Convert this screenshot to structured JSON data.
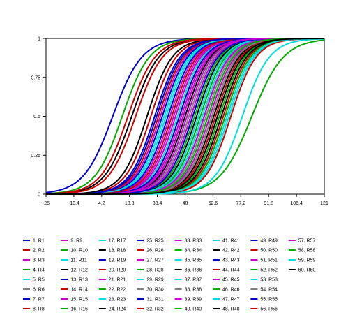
{
  "chart_data": {
    "type": "line",
    "title": "",
    "xlabel": "",
    "ylabel": "",
    "xlim": [
      -25,
      121
    ],
    "ylim": [
      0,
      1
    ],
    "grid": false,
    "legend_position": "bottom",
    "legend_columns": 8,
    "x_tick_labels": [
      "-25",
      "-10.4",
      "4.2",
      "18.8",
      "33.4",
      "48",
      "62.6",
      "77.2",
      "91.8",
      "106.4",
      "121"
    ],
    "y_tick_labels": [
      "0",
      "0.25",
      "0.5",
      "0.75",
      "1"
    ],
    "y_tick_values": [
      0,
      0.25,
      0.5,
      0.75,
      1
    ],
    "curve_shape": "logistic",
    "series": [
      {
        "name": "1. R1",
        "color": "#0000CC",
        "midpoint": 10.0,
        "slope": 0.13
      },
      {
        "name": "2. R2",
        "color": "#CC0000",
        "midpoint": 30.0,
        "slope": 0.15
      },
      {
        "name": "3. R3",
        "color": "#CC00CC",
        "midpoint": 35.0,
        "slope": 0.15
      },
      {
        "name": "4. R4",
        "color": "#00AA00",
        "midpoint": 45.0,
        "slope": 0.15
      },
      {
        "name": "5. R5",
        "color": "#00DDDD",
        "midpoint": 50.0,
        "slope": 0.15
      },
      {
        "name": "6. R6",
        "color": "#808080",
        "midpoint": 55.0,
        "slope": 0.15
      },
      {
        "name": "7. R7",
        "color": "#0000CC",
        "midpoint": 58.0,
        "slope": 0.15
      },
      {
        "name": "8. R8",
        "color": "#CC0000",
        "midpoint": 62.0,
        "slope": 0.15
      },
      {
        "name": "9. R9",
        "color": "#CC00CC",
        "midpoint": 40.0,
        "slope": 0.15
      },
      {
        "name": "10. R10",
        "color": "#00AA00",
        "midpoint": 15.0,
        "slope": 0.14
      },
      {
        "name": "11. R11",
        "color": "#00DDDD",
        "midpoint": 38.0,
        "slope": 0.15
      },
      {
        "name": "12. R12",
        "color": "#000000",
        "midpoint": 20.0,
        "slope": 0.14
      },
      {
        "name": "13. R13",
        "color": "#0000CC",
        "midpoint": 36.0,
        "slope": 0.15
      },
      {
        "name": "14. R14",
        "color": "#CC0000",
        "midpoint": 18.0,
        "slope": 0.14
      },
      {
        "name": "15. R15",
        "color": "#CC00CC",
        "midpoint": 42.0,
        "slope": 0.15
      },
      {
        "name": "16. R16",
        "color": "#00AA00",
        "midpoint": 65.0,
        "slope": 0.15
      },
      {
        "name": "17. R17",
        "color": "#00DDDD",
        "midpoint": 44.0,
        "slope": 0.15
      },
      {
        "name": "18. R18",
        "color": "#000000",
        "midpoint": 48.0,
        "slope": 0.15
      },
      {
        "name": "19. R19",
        "color": "#0000CC",
        "midpoint": 32.0,
        "slope": 0.15
      },
      {
        "name": "20. R20",
        "color": "#CC0000",
        "midpoint": 34.0,
        "slope": 0.15
      },
      {
        "name": "21. R21",
        "color": "#CC00CC",
        "midpoint": 46.0,
        "slope": 0.15
      },
      {
        "name": "22. R22",
        "color": "#00AA00",
        "midpoint": 52.0,
        "slope": 0.15
      },
      {
        "name": "23. R23",
        "color": "#00DDDD",
        "midpoint": 60.0,
        "slope": 0.15
      },
      {
        "name": "24. R24",
        "color": "#000000",
        "midpoint": 28.0,
        "slope": 0.15
      },
      {
        "name": "25. R25",
        "color": "#0000CC",
        "midpoint": 39.0,
        "slope": 0.15
      },
      {
        "name": "26. R26",
        "color": "#CC0000",
        "midpoint": 22.0,
        "slope": 0.14
      },
      {
        "name": "27. R27",
        "color": "#CC00CC",
        "midpoint": 43.0,
        "slope": 0.15
      },
      {
        "name": "28. R28",
        "color": "#00AA00",
        "midpoint": 56.0,
        "slope": 0.15
      },
      {
        "name": "29. R29",
        "color": "#00DDDD",
        "midpoint": 37.0,
        "slope": 0.15
      },
      {
        "name": "30. R30",
        "color": "#808080",
        "midpoint": 50.0,
        "slope": 0.15
      },
      {
        "name": "31. R31",
        "color": "#0000CC",
        "midpoint": 47.0,
        "slope": 0.15
      },
      {
        "name": "32. R32",
        "color": "#CC0000",
        "midpoint": 41.0,
        "slope": 0.15
      },
      {
        "name": "33. R33",
        "color": "#CC00CC",
        "midpoint": 49.0,
        "slope": 0.15
      },
      {
        "name": "34. R34",
        "color": "#00AA00",
        "midpoint": 53.0,
        "slope": 0.15
      },
      {
        "name": "35. R35",
        "color": "#00DDDD",
        "midpoint": 57.0,
        "slope": 0.15
      },
      {
        "name": "36. R36",
        "color": "#000000",
        "midpoint": 54.0,
        "slope": 0.15
      },
      {
        "name": "37. R37",
        "color": "#00DDDD",
        "midpoint": 71.0,
        "slope": 0.15
      },
      {
        "name": "38. R38",
        "color": "#808080",
        "midpoint": 59.0,
        "slope": 0.15
      },
      {
        "name": "39. R39",
        "color": "#CC00CC",
        "midpoint": 51.0,
        "slope": 0.15
      },
      {
        "name": "40. R40",
        "color": "#00AA00",
        "midpoint": 83.0,
        "slope": 0.12
      },
      {
        "name": "41. R41",
        "color": "#00DDDD",
        "midpoint": 55.0,
        "slope": 0.15
      },
      {
        "name": "42. R42",
        "color": "#000000",
        "midpoint": 63.0,
        "slope": 0.15
      },
      {
        "name": "43. R43",
        "color": "#0000CC",
        "midpoint": 45.0,
        "slope": 0.15
      },
      {
        "name": "44. R44",
        "color": "#CC0000",
        "midpoint": 68.0,
        "slope": 0.15
      },
      {
        "name": "45. R45",
        "color": "#CC00CC",
        "midpoint": 61.0,
        "slope": 0.15
      },
      {
        "name": "46. R46",
        "color": "#00AA00",
        "midpoint": 66.0,
        "slope": 0.15
      },
      {
        "name": "47. R47",
        "color": "#00DDDD",
        "midpoint": 64.0,
        "slope": 0.15
      },
      {
        "name": "48. R48",
        "color": "#000000",
        "midpoint": 67.0,
        "slope": 0.15
      },
      {
        "name": "49. R49",
        "color": "#0000CC",
        "midpoint": 33.0,
        "slope": 0.15
      },
      {
        "name": "50. R50",
        "color": "#CC0000",
        "midpoint": 72.0,
        "slope": 0.15
      },
      {
        "name": "51. R51",
        "color": "#CC00CC",
        "midpoint": 58.0,
        "slope": 0.15
      },
      {
        "name": "52. R52",
        "color": "#00AA00",
        "midpoint": 69.0,
        "slope": 0.15
      },
      {
        "name": "53. R53",
        "color": "#00DDDD",
        "midpoint": 78.0,
        "slope": 0.14
      },
      {
        "name": "54. R54",
        "color": "#808080",
        "midpoint": 62.0,
        "slope": 0.15
      },
      {
        "name": "55. R55",
        "color": "#0000CC",
        "midpoint": 52.0,
        "slope": 0.15
      },
      {
        "name": "56. R56",
        "color": "#CC0000",
        "midpoint": 64.0,
        "slope": 0.15
      },
      {
        "name": "57. R57",
        "color": "#CC00CC",
        "midpoint": 47.0,
        "slope": 0.15
      },
      {
        "name": "58. R58",
        "color": "#00AA00",
        "midpoint": 60.0,
        "slope": 0.15
      },
      {
        "name": "59. R59",
        "color": "#00DDDD",
        "midpoint": 70.0,
        "slope": 0.15
      },
      {
        "name": "60. R60",
        "color": "#000000",
        "midpoint": 65.0,
        "slope": 0.15
      }
    ]
  }
}
